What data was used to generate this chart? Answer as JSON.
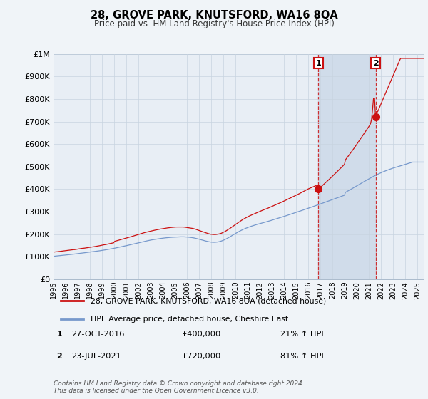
{
  "title": "28, GROVE PARK, KNUTSFORD, WA16 8QA",
  "subtitle": "Price paid vs. HM Land Registry's House Price Index (HPI)",
  "ylim": [
    0,
    1000000
  ],
  "yticks": [
    0,
    100000,
    200000,
    300000,
    400000,
    500000,
    600000,
    700000,
    800000,
    900000,
    1000000
  ],
  "ytick_labels": [
    "£0",
    "£100K",
    "£200K",
    "£300K",
    "£400K",
    "£500K",
    "£600K",
    "£700K",
    "£800K",
    "£900K",
    "£1M"
  ],
  "xlim_start": 1995.0,
  "xlim_end": 2025.5,
  "hpi_color": "#7799cc",
  "price_color": "#cc1111",
  "transaction1": {
    "label": "1",
    "date": "27-OCT-2016",
    "price": 400000,
    "hpi_pct": "21%",
    "year": 2016.83
  },
  "transaction2": {
    "label": "2",
    "date": "23-JUL-2021",
    "price": 720000,
    "hpi_pct": "81%",
    "year": 2021.55
  },
  "legend_line1": "28, GROVE PARK, KNUTSFORD, WA16 8QA (detached house)",
  "legend_line2": "HPI: Average price, detached house, Cheshire East",
  "footer": "Contains HM Land Registry data © Crown copyright and database right 2024.\nThis data is licensed under the Open Government Licence v3.0.",
  "table_row1": [
    "1",
    "27-OCT-2016",
    "£400,000",
    "21% ↑ HPI"
  ],
  "table_row2": [
    "2",
    "23-JUL-2021",
    "£720,000",
    "81% ↑ HPI"
  ],
  "background_color": "#f0f4f8",
  "plot_bg_color": "#e8eef5",
  "grid_color": "#c8d4e0",
  "shade_color": "#d0dcea"
}
